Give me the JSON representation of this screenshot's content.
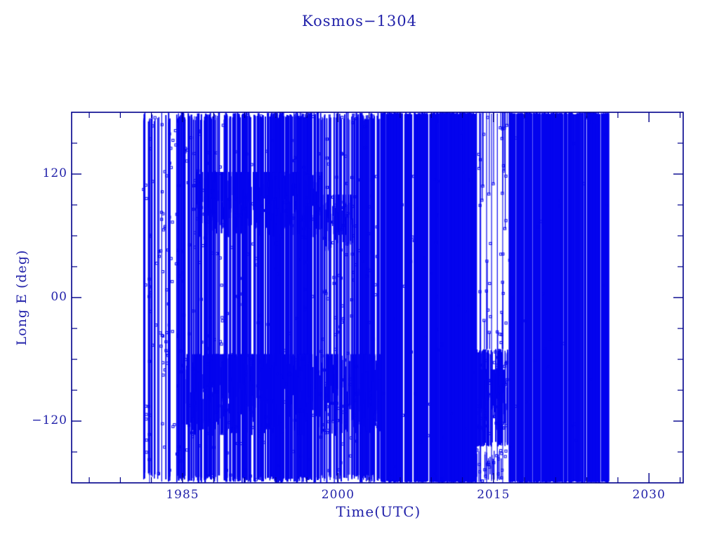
{
  "chart_data": {
    "type": "scatter",
    "title": "Kosmos−1304",
    "xlabel": "Time(UTC)",
    "ylabel": "Long E (deg)",
    "xlim": [
      1974.3,
      2033.3
    ],
    "ylim": [
      -180,
      180
    ],
    "grid": false,
    "legend": "none",
    "marker": "open-square",
    "marker_size_px": 3.2,
    "colors": {
      "data": "#0404ee",
      "axis": "#00008b",
      "text": "#2222aa",
      "background": "#ffffff"
    },
    "x_axis": {
      "major_ticks": [
        1985,
        2000,
        2015,
        2030
      ],
      "major_labels": [
        "1985",
        "2000",
        "2015",
        "2030"
      ],
      "minor_ticks": [
        1976,
        1979,
        1982,
        1988,
        1991,
        1994,
        1997,
        2003,
        2006,
        2009,
        2012,
        2018,
        2021,
        2024,
        2027,
        2033
      ],
      "minor_step_years": 3
    },
    "y_axis": {
      "major_ticks": [
        120,
        0,
        -120
      ],
      "major_labels": [
        "120",
        "00",
        "−120"
      ],
      "minor_ticks": [
        150,
        90,
        60,
        30,
        -30,
        -60,
        -90,
        -150
      ],
      "minor_step_deg": 30
    },
    "data_span_years": [
      1981.2,
      2026.1
    ],
    "pattern": {
      "note": "Dense longitude-drift coverage estimated from pixels: vertical drift traces spanning full longitude range plus dense libration clusters; white gap 2013.3-2016.4 above -50 deg except sparse spikes.",
      "eras": [
        {
          "t": [
            1981.2,
            1984.0
          ],
          "lon": [
            -180,
            180
          ],
          "lines": 24,
          "w": [
            1,
            2
          ],
          "jitter": 10,
          "markers": 70
        },
        {
          "t": [
            1984.0,
            1989.0
          ],
          "lon": [
            -180,
            180
          ],
          "lines": 60,
          "w": [
            1,
            2.6
          ],
          "jitter": 8,
          "markers": 110
        },
        {
          "t": [
            1989.0,
            1998.3
          ],
          "lon": [
            -180,
            180
          ],
          "lines": 140,
          "w": [
            1,
            3
          ],
          "jitter": 6,
          "markers": 90
        },
        {
          "t": [
            1998.3,
            2001.3
          ],
          "lon": [
            -180,
            180
          ],
          "lines": 30,
          "w": [
            1,
            2
          ],
          "jitter": 8,
          "markers": 70
        },
        {
          "t": [
            2001.3,
            2004.0
          ],
          "lon": [
            -180,
            180
          ],
          "lines": 40,
          "w": [
            1,
            2.6
          ],
          "jitter": 8,
          "markers": 40
        },
        {
          "t": [
            2004.0,
            2013.3
          ],
          "lon": [
            -180,
            180
          ],
          "lines": 190,
          "w": [
            1.6,
            3
          ],
          "jitter": 2,
          "markers": 40
        },
        {
          "t": [
            2013.3,
            2016.35
          ],
          "lon": [
            -180,
            180
          ],
          "lines": 6,
          "w": [
            1,
            1.2
          ],
          "jitter": 2,
          "markers": 26
        },
        {
          "t": [
            2013.3,
            2016.35
          ],
          "lon": [
            -145,
            -50
          ],
          "lines": 55,
          "w": [
            1,
            2.4
          ],
          "jitter": 5,
          "markers": 45
        },
        {
          "t": [
            2013.3,
            2016.35
          ],
          "lon": [
            -180,
            -148
          ],
          "lines": 14,
          "w": [
            1,
            1.4
          ],
          "jitter": 10,
          "markers": 18
        },
        {
          "t": [
            2016.35,
            2026.1
          ],
          "lon": [
            -180,
            180
          ],
          "lines": 200,
          "w": [
            1.6,
            3
          ],
          "jitter": 2,
          "markers": 30
        }
      ],
      "clusters": [
        {
          "t": [
            1985.3,
            2004.0
          ],
          "lon": [
            -135,
            -55
          ],
          "strokes": 330,
          "w": [
            1.4,
            3
          ]
        },
        {
          "t": [
            1986.3,
            1998.4
          ],
          "lon": [
            58,
            122
          ],
          "strokes": 215,
          "w": [
            1.4,
            3
          ]
        },
        {
          "t": [
            1998.4,
            2001.5
          ],
          "lon": [
            45,
            100
          ],
          "strokes": 45,
          "w": [
            1,
            2
          ]
        },
        {
          "t": [
            2013.5,
            2016.3
          ],
          "lon": [
            -130,
            -70
          ],
          "strokes": 60,
          "w": [
            1,
            2.2
          ]
        }
      ],
      "stubs": [
        {
          "t": [
            2013.4,
            2016.3
          ],
          "from": 180,
          "to": [
            55,
            135
          ],
          "count": 8
        },
        {
          "t": [
            2013.4,
            2016.3
          ],
          "from": -50,
          "to": [
            -35,
            40
          ],
          "count": 8
        },
        {
          "t": [
            2015.5,
            2016.3
          ],
          "from": 180,
          "to": [
            150,
            170
          ],
          "count": 5
        }
      ]
    }
  }
}
